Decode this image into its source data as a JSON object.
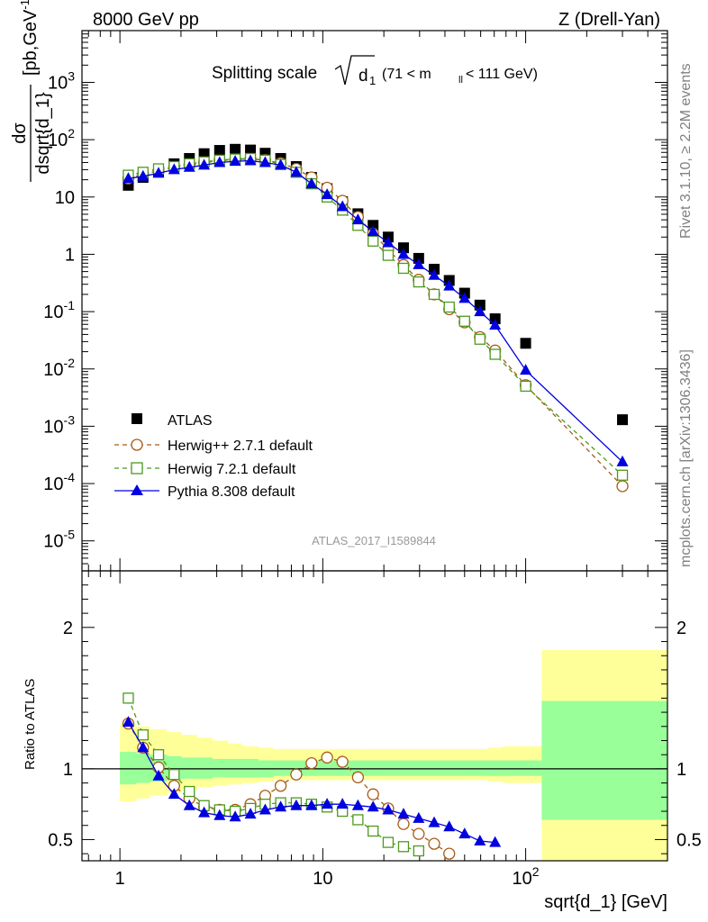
{
  "header": {
    "left": "8000 GeV pp",
    "right": "Z (Drell-Yan)"
  },
  "side_labels": {
    "rivet": "Rivet 3.1.10, ≥ 2.2M events",
    "mcplots": "mcplots.cern.ch [arXiv:1306.3436]"
  },
  "analysis_id": "ATLAS_2017_I1589844",
  "chart_data": [
    {
      "type": "scatter",
      "title_main": "Splitting scale",
      "title_sqrt": "d",
      "title_sub": "1",
      "title_cut": "(71 < m",
      "title_cut_sub": "ll",
      "title_cut_end": " < 111 GeV)",
      "ylabel_num": "dσ",
      "ylabel_den": "dsqrt{d_1}",
      "ylabel_unit": "[pb,GeV",
      "ylabel_unit_sup": "-1",
      "ylabel_unit_end": "]",
      "x_scale": "log",
      "y_scale": "log",
      "xlim": [
        0.65,
        500
      ],
      "ylim": [
        3e-06,
        8000
      ],
      "yticks": [
        {
          "value": 1e-05,
          "base": "10",
          "exp": "-5"
        },
        {
          "value": 0.0001,
          "base": "10",
          "exp": "-4"
        },
        {
          "value": 0.001,
          "base": "10",
          "exp": "-3"
        },
        {
          "value": 0.01,
          "base": "10",
          "exp": "-2"
        },
        {
          "value": 0.1,
          "base": "10",
          "exp": "-1"
        },
        {
          "value": 1,
          "base": "1",
          "exp": ""
        },
        {
          "value": 10,
          "base": "10",
          "exp": ""
        },
        {
          "value": 100,
          "base": "10",
          "exp": "2"
        },
        {
          "value": 1000,
          "base": "10",
          "exp": "3"
        }
      ],
      "legend_position": "lower-left",
      "series": [
        {
          "name": "ATLAS",
          "color": "#000000",
          "marker": "square-filled",
          "x": [
            1.1,
            1.3,
            1.55,
            1.85,
            2.2,
            2.6,
            3.1,
            3.7,
            4.4,
            5.2,
            6.2,
            7.4,
            8.8,
            10.5,
            12.5,
            14.9,
            17.7,
            21.0,
            25.0,
            29.7,
            35.4,
            42.0,
            50.0,
            59.5,
            70.7,
            100,
            300
          ],
          "y": [
            16,
            22,
            28,
            38,
            47,
            57,
            65,
            68,
            66,
            58,
            47,
            34,
            22,
            14,
            8.3,
            5.1,
            3.2,
            2.0,
            1.3,
            0.85,
            0.55,
            0.35,
            0.21,
            0.13,
            0.075,
            0.028,
            0.0013
          ]
        },
        {
          "name": "Herwig++ 2.7.1 default",
          "color": "#a85a14",
          "marker": "circle-open",
          "line": "dashed",
          "x": [
            1.1,
            1.3,
            1.55,
            1.85,
            2.2,
            2.6,
            3.1,
            3.7,
            4.4,
            5.2,
            6.2,
            7.4,
            8.8,
            10.5,
            12.5,
            14.9,
            17.7,
            21.0,
            25.0,
            29.7,
            35.4,
            42.0,
            50.0,
            59.5,
            70.7,
            100,
            300
          ],
          "y": [
            21,
            25,
            28.5,
            33,
            36,
            40,
            43,
            45,
            46,
            44,
            39,
            31,
            22,
            14.5,
            8.6,
            4.5,
            2.3,
            1.2,
            0.65,
            0.36,
            0.2,
            0.11,
            0.065,
            0.036,
            0.021,
            0.0052,
            9e-05
          ]
        },
        {
          "name": "Herwig 7.2.1 default",
          "color": "#4c9a1e",
          "marker": "square-open",
          "line": "dashed",
          "x": [
            1.1,
            1.3,
            1.55,
            1.85,
            2.2,
            2.6,
            3.1,
            3.7,
            4.4,
            5.2,
            6.2,
            7.4,
            8.8,
            10.5,
            12.5,
            14.9,
            17.7,
            21.0,
            25.0,
            29.7,
            35.4,
            42.0,
            50.0,
            59.5,
            70.7,
            100,
            300
          ],
          "y": [
            24,
            27,
            31,
            34,
            38,
            41,
            44,
            46,
            47,
            44,
            37,
            27,
            17,
            10,
            5.9,
            3.2,
            1.7,
            0.96,
            0.57,
            0.33,
            0.2,
            0.12,
            0.068,
            0.033,
            0.018,
            0.005,
            0.00014
          ]
        },
        {
          "name": "Pythia 8.308 default",
          "color": "#0000e0",
          "marker": "triangle-filled",
          "line": "solid",
          "x": [
            1.1,
            1.3,
            1.55,
            1.85,
            2.2,
            2.6,
            3.1,
            3.7,
            4.4,
            5.2,
            6.2,
            7.4,
            8.8,
            10.5,
            12.5,
            14.9,
            17.7,
            21.0,
            25.0,
            29.7,
            35.4,
            42.0,
            50.0,
            59.5,
            70.7,
            100,
            300
          ],
          "y": [
            21,
            23,
            26,
            30,
            33,
            36,
            40,
            42,
            43,
            40,
            36,
            27,
            17,
            11,
            6.8,
            4.0,
            2.5,
            1.6,
            1.0,
            0.66,
            0.43,
            0.28,
            0.17,
            0.1,
            0.058,
            0.0095,
            0.00024
          ]
        }
      ]
    },
    {
      "type": "line",
      "ylabel": "Ratio to ATLAS",
      "xlabel": "sqrt{d_1} [GeV]",
      "x_scale": "log",
      "xlim": [
        0.65,
        500
      ],
      "ylim": [
        0.35,
        2.4
      ],
      "reference_line": 1,
      "xticks": [
        {
          "value": 1,
          "base": "1",
          "exp": ""
        },
        {
          "value": 10,
          "base": "10",
          "exp": ""
        },
        {
          "value": 100,
          "base": "10",
          "exp": "2"
        }
      ],
      "yticks": [
        {
          "value": 0.5,
          "label": "0.5"
        },
        {
          "value": 1,
          "label": "1"
        },
        {
          "value": 2,
          "label": "2"
        }
      ],
      "bins": [
        1.0,
        1.2,
        1.4,
        1.7,
        2.0,
        2.4,
        2.85,
        3.4,
        4.0,
        4.8,
        5.7,
        6.8,
        8.1,
        9.6,
        11.4,
        13.6,
        16.2,
        19.3,
        22.9,
        27.3,
        32.4,
        38.6,
        45.9,
        54.6,
        65.0,
        77.2,
        120,
        500
      ],
      "band_total": [
        [
          0.77,
          1.32
        ],
        [
          0.79,
          1.3
        ],
        [
          0.81,
          1.28
        ],
        [
          0.83,
          1.26
        ],
        [
          0.85,
          1.24
        ],
        [
          0.87,
          1.22
        ],
        [
          0.88,
          1.2
        ],
        [
          0.89,
          1.18
        ],
        [
          0.9,
          1.16
        ],
        [
          0.91,
          1.15
        ],
        [
          0.92,
          1.14
        ],
        [
          0.92,
          1.14
        ],
        [
          0.92,
          1.14
        ],
        [
          0.92,
          1.14
        ],
        [
          0.92,
          1.14
        ],
        [
          0.92,
          1.14
        ],
        [
          0.92,
          1.14
        ],
        [
          0.92,
          1.14
        ],
        [
          0.92,
          1.14
        ],
        [
          0.92,
          1.14
        ],
        [
          0.92,
          1.14
        ],
        [
          0.92,
          1.14
        ],
        [
          0.92,
          1.14
        ],
        [
          0.92,
          1.14
        ],
        [
          0.91,
          1.15
        ],
        [
          0.9,
          1.16
        ],
        [
          0.31,
          1.84
        ]
      ],
      "band_stat": [
        [
          0.89,
          1.12
        ],
        [
          0.9,
          1.11
        ],
        [
          0.91,
          1.1
        ],
        [
          0.92,
          1.09
        ],
        [
          0.93,
          1.08
        ],
        [
          0.93,
          1.08
        ],
        [
          0.94,
          1.07
        ],
        [
          0.94,
          1.07
        ],
        [
          0.94,
          1.07
        ],
        [
          0.94,
          1.06
        ],
        [
          0.95,
          1.06
        ],
        [
          0.95,
          1.06
        ],
        [
          0.95,
          1.06
        ],
        [
          0.95,
          1.06
        ],
        [
          0.95,
          1.06
        ],
        [
          0.95,
          1.06
        ],
        [
          0.95,
          1.06
        ],
        [
          0.95,
          1.06
        ],
        [
          0.95,
          1.06
        ],
        [
          0.95,
          1.06
        ],
        [
          0.95,
          1.06
        ],
        [
          0.95,
          1.06
        ],
        [
          0.95,
          1.06
        ],
        [
          0.95,
          1.06
        ],
        [
          0.95,
          1.06
        ],
        [
          0.95,
          1.06
        ],
        [
          0.64,
          1.48
        ]
      ],
      "band_colors": {
        "total": "#ffff99",
        "stat": "#99ff99"
      },
      "series": [
        {
          "name": "Herwig++ 2.7.1 default",
          "color": "#a85a14",
          "marker": "circle-open",
          "line": "dashed",
          "x": [
            1.1,
            1.3,
            1.55,
            1.85,
            2.2,
            2.6,
            3.1,
            3.7,
            4.4,
            5.2,
            6.2,
            7.4,
            8.8,
            10.5,
            12.5,
            14.9,
            17.7,
            21.0,
            25.0,
            29.7,
            35.4,
            42.0
          ],
          "y": [
            1.32,
            1.15,
            1.01,
            0.88,
            0.79,
            0.73,
            0.71,
            0.71,
            0.75,
            0.81,
            0.88,
            0.96,
            1.04,
            1.08,
            1.05,
            0.94,
            0.82,
            0.72,
            0.61,
            0.54,
            0.47,
            0.4
          ]
        },
        {
          "name": "Herwig 7.2.1 default",
          "color": "#4c9a1e",
          "marker": "square-open",
          "line": "dashed",
          "x": [
            1.1,
            1.3,
            1.55,
            1.85,
            2.2,
            2.6,
            3.1,
            3.7,
            4.4,
            5.2,
            6.2,
            7.4,
            8.8,
            10.5,
            12.5,
            14.9,
            17.7,
            21.0,
            25.0,
            29.7
          ],
          "y": [
            1.5,
            1.24,
            1.1,
            0.96,
            0.84,
            0.74,
            0.71,
            0.7,
            0.72,
            0.75,
            0.76,
            0.76,
            0.75,
            0.73,
            0.7,
            0.64,
            0.56,
            0.48,
            0.45,
            0.42
          ]
        },
        {
          "name": "Pythia 8.308 default",
          "color": "#0000e0",
          "marker": "triangle-filled",
          "line": "solid",
          "x": [
            1.1,
            1.3,
            1.55,
            1.85,
            2.2,
            2.6,
            3.1,
            3.7,
            4.4,
            5.2,
            6.2,
            7.4,
            8.8,
            10.5,
            12.5,
            14.9,
            17.7,
            21.0,
            25.0,
            29.7,
            35.4,
            42.0,
            50.0,
            59.5,
            70.7
          ],
          "y": [
            1.33,
            1.15,
            0.95,
            0.82,
            0.74,
            0.69,
            0.67,
            0.66,
            0.68,
            0.71,
            0.73,
            0.74,
            0.74,
            0.75,
            0.75,
            0.74,
            0.73,
            0.71,
            0.68,
            0.65,
            0.62,
            0.59,
            0.54,
            0.49,
            0.48
          ]
        }
      ]
    }
  ]
}
